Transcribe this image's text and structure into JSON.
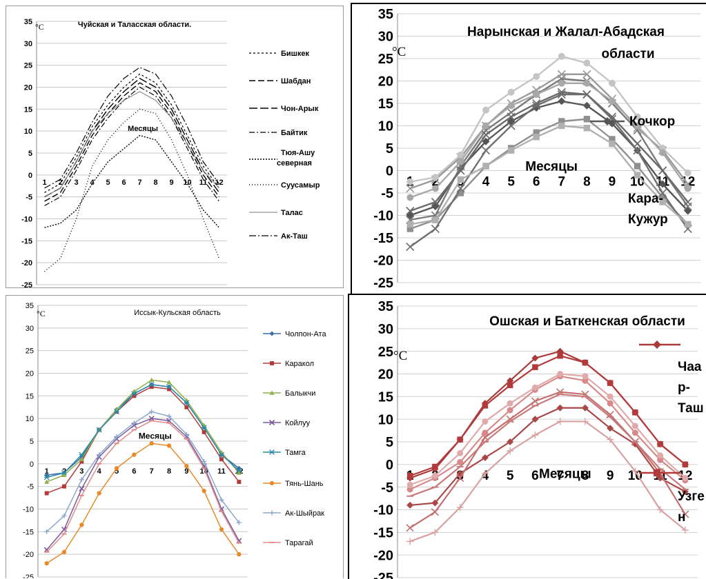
{
  "chart_data": [
    {
      "type": "line",
      "title": "Чуйская и Таласская области.",
      "unit_label": "°C",
      "xlabel": "Месяцы",
      "x": [
        1,
        2,
        3,
        4,
        5,
        6,
        7,
        8,
        9,
        10,
        11,
        12
      ],
      "ylim": [
        -25,
        35
      ],
      "yticks": [
        -25,
        -20,
        -15,
        -10,
        -5,
        0,
        5,
        10,
        15,
        20,
        25,
        30,
        35
      ],
      "grid": true,
      "legend_position": "right",
      "series": [
        {
          "name": "Бишкек",
          "values": [
            -4,
            -2,
            4,
            11,
            16,
            20,
            23,
            21,
            16,
            9,
            2,
            -3
          ]
        },
        {
          "name": "Шабдан",
          "values": [
            -6,
            -4,
            2,
            9,
            14,
            18,
            21,
            19,
            14,
            7,
            0,
            -5
          ]
        },
        {
          "name": "Чон-Арык",
          "values": [
            -5,
            -3,
            3,
            10,
            15,
            19,
            22,
            20,
            15,
            8,
            1,
            -4
          ]
        },
        {
          "name": "Байтик",
          "values": [
            -7,
            -5,
            1,
            8,
            13,
            17,
            20,
            18,
            13,
            6,
            -1,
            -6
          ]
        },
        {
          "name": "Тюя-Ашу северная",
          "values": [
            -12,
            -11,
            -8,
            -2,
            3,
            6,
            9,
            8,
            3,
            -2,
            -8,
            -12
          ]
        },
        {
          "name": "Суусамыр",
          "values": [
            -22,
            -19,
            -10,
            2,
            8,
            12,
            15,
            14,
            8,
            0,
            -10,
            -19
          ]
        },
        {
          "name": "Талас",
          "values": [
            -5,
            -3,
            3,
            10,
            14,
            17,
            19,
            17,
            13,
            7,
            1,
            -3
          ]
        },
        {
          "name": "Ак-Таш",
          "values": [
            -3,
            -1,
            5,
            12,
            18,
            22,
            24.5,
            23,
            18,
            11,
            3,
            -2
          ]
        }
      ],
      "styles": [
        {
          "color": "#000000",
          "dash": "3 3",
          "width": 1.2
        },
        {
          "color": "#000000",
          "dash": "9 4",
          "width": 1.4
        },
        {
          "color": "#000000",
          "dash": "12 4",
          "width": 1.4
        },
        {
          "color": "#000000",
          "dash": "8 3 2 3",
          "width": 1.2
        },
        {
          "color": "#000000",
          "dash": "2 2",
          "width": 1.4
        },
        {
          "color": "#000000",
          "dash": "1 3",
          "width": 1.4
        },
        {
          "color": "#777777",
          "dash": "",
          "width": 1
        },
        {
          "color": "#000000",
          "dash": "10 3 2 3",
          "width": 1.2
        }
      ]
    },
    {
      "type": "line",
      "title": "Нарынская и Жалал-Абадская области",
      "unit_label": "°C",
      "xlabel": "Месяцы",
      "x": [
        1,
        2,
        3,
        4,
        5,
        6,
        7,
        8,
        9,
        10,
        11,
        12
      ],
      "ylim": [
        -25,
        35
      ],
      "yticks": [
        -25,
        -20,
        -15,
        -10,
        -5,
        0,
        5,
        10,
        15,
        20,
        25,
        30,
        35
      ],
      "grid": true,
      "legend_position": "right",
      "series": [
        {
          "name": "Кочкор",
          "values": [
            -10,
            -8,
            0.5,
            6.5,
            11,
            14,
            15.5,
            14.5,
            10.5,
            4.5,
            -3,
            -9
          ]
        },
        {
          "name": "Кара-Кужур",
          "values": [
            -13,
            -11,
            -5,
            1,
            5,
            8.5,
            11,
            11.5,
            7,
            1,
            -6,
            -12
          ]
        },
        {
          "name": "",
          "values": [
            -17,
            -13,
            -4,
            4.5,
            10,
            14.5,
            17,
            17,
            11.5,
            4.5,
            -5,
            -13
          ]
        },
        {
          "name": "",
          "values": [
            -11,
            -10,
            1,
            9,
            13,
            17,
            20.5,
            20,
            15,
            9,
            0,
            -8
          ]
        },
        {
          "name": "",
          "values": [
            -12,
            -11,
            -2,
            1,
            4.5,
            7.5,
            10,
            9.5,
            6,
            -1,
            -7,
            -12
          ]
        },
        {
          "name": "",
          "values": [
            -4,
            -2,
            3,
            10,
            15,
            18,
            21.5,
            21.5,
            16,
            9.5,
            4.5,
            -3
          ]
        },
        {
          "name": "",
          "values": [
            -2.5,
            -1.5,
            3.5,
            13.5,
            17.5,
            21,
            25.5,
            24,
            19.5,
            12,
            5,
            -0.5
          ]
        },
        {
          "name": "",
          "values": [
            -6,
            -4,
            2,
            10,
            14.5,
            17,
            19.5,
            19.5,
            15.5,
            10,
            4,
            -4
          ]
        },
        {
          "name": "",
          "values": [
            -9,
            -7,
            0,
            8,
            12,
            15,
            17.5,
            17,
            12,
            6,
            0,
            -7
          ]
        }
      ],
      "styles": [
        {
          "color": "#555555",
          "marker": "diamond"
        },
        {
          "color": "#8f8f8f",
          "marker": "square"
        },
        {
          "color": "#6f6f6f",
          "marker": "x"
        },
        {
          "color": "#7a7a7a",
          "marker": "x"
        },
        {
          "color": "#b0b0b0",
          "marker": "square"
        },
        {
          "color": "#9a9a9a",
          "marker": "x"
        },
        {
          "color": "#c4c4c4",
          "marker": "circle"
        },
        {
          "color": "#a8a8a8",
          "marker": "circle"
        },
        {
          "color": "#6a6a6a",
          "marker": "x"
        }
      ]
    },
    {
      "type": "line",
      "title": "Иссык-Кульская область",
      "unit_label": "°C",
      "xlabel": "Месяцы",
      "x": [
        1,
        2,
        3,
        4,
        5,
        6,
        7,
        8,
        9,
        10,
        11,
        12
      ],
      "ylim": [
        -25,
        35
      ],
      "yticks": [
        -25,
        -20,
        -15,
        -10,
        -5,
        0,
        5,
        10,
        15,
        20,
        25,
        30,
        35
      ],
      "grid": true,
      "legend_position": "right",
      "series": [
        {
          "name": "Чолпон-Ата",
          "values": [
            -2.5,
            -2,
            1.5,
            7.5,
            12,
            15.5,
            17.5,
            17,
            13.5,
            8,
            2,
            -1
          ]
        },
        {
          "name": "Каракол",
          "values": [
            -6.5,
            -5,
            0.5,
            7.5,
            11.5,
            15,
            17,
            16.5,
            12.5,
            7,
            1,
            -4
          ]
        },
        {
          "name": "Балыкчи",
          "values": [
            -4,
            -2.5,
            1,
            7.5,
            12,
            16,
            18.5,
            18,
            14,
            8.5,
            2.5,
            -2
          ]
        },
        {
          "name": "Койлуу",
          "values": [
            -19,
            -14.5,
            -5.5,
            1.5,
            5.5,
            8.5,
            10,
            9.5,
            6,
            -0.5,
            -10,
            -17
          ]
        },
        {
          "name": "Тамга",
          "values": [
            -3,
            -2,
            2,
            7.5,
            11.5,
            15.5,
            17.5,
            17,
            13.5,
            8,
            2,
            -1.5
          ]
        },
        {
          "name": "Тянь-Шань",
          "values": [
            -22,
            -19.5,
            -13.5,
            -6.5,
            -1,
            2,
            4.5,
            4,
            -0.5,
            -6,
            -14.5,
            -20
          ]
        },
        {
          "name": "Ак-Шыйрак",
          "values": [
            -15,
            -11.5,
            -3.5,
            2,
            6,
            9,
            11.5,
            10.5,
            6.5,
            0.5,
            -8,
            -13
          ]
        },
        {
          "name": "Тарагай",
          "values": [
            -19.5,
            -15.5,
            -7,
            0,
            4.5,
            7.5,
            9.5,
            9,
            5.5,
            -1,
            -10.5,
            -17.5
          ]
        }
      ],
      "styles": [
        {
          "color": "#3a6ea8",
          "marker": "diamond"
        },
        {
          "color": "#b13a3a",
          "marker": "square"
        },
        {
          "color": "#8db04a",
          "marker": "triangle"
        },
        {
          "color": "#7a5a9a",
          "marker": "x"
        },
        {
          "color": "#2a8aa8",
          "marker": "star"
        },
        {
          "color": "#e88a2a",
          "marker": "circle"
        },
        {
          "color": "#8aa8cc",
          "marker": "plus"
        },
        {
          "color": "#e08a8a",
          "marker": "dash"
        }
      ]
    },
    {
      "type": "line",
      "title": "Ошская и Баткенская области",
      "unit_label": "°C",
      "xlabel": "Месяцы",
      "x": [
        1,
        2,
        3,
        4,
        5,
        6,
        7,
        8,
        9,
        10,
        11,
        12
      ],
      "ylim": [
        -25,
        35
      ],
      "yticks": [
        -25,
        -20,
        -15,
        -10,
        -5,
        0,
        5,
        10,
        15,
        20,
        25,
        30,
        35
      ],
      "grid": true,
      "legend_position": "right",
      "series": [
        {
          "name": "Чаа р- Таш",
          "values": [
            -3,
            -1,
            5.5,
            13.5,
            18.5,
            23.5,
            25,
            22.5,
            18,
            11.5,
            4.5,
            0
          ]
        },
        {
          "name": "Узге н",
          "values": [
            -2.5,
            -0.5,
            5.5,
            13,
            17.5,
            21.5,
            24,
            22.5,
            18,
            11.5,
            4.5,
            0
          ]
        },
        {
          "name": "",
          "values": [
            -9,
            -8.5,
            -2,
            1.5,
            5,
            10,
            12.5,
            12.5,
            8,
            4.5,
            -3,
            -6
          ]
        },
        {
          "name": "",
          "values": [
            -14,
            -10.5,
            -3,
            6,
            10,
            14,
            16,
            15.5,
            11,
            5,
            -2,
            -11
          ]
        },
        {
          "name": "",
          "values": [
            -17,
            -15,
            -9.5,
            -2,
            3,
            6.5,
            9.5,
            9.5,
            5.5,
            -1.5,
            -10,
            -14.5
          ]
        },
        {
          "name": "",
          "values": [
            -5.5,
            -3,
            0.5,
            7,
            12,
            16.5,
            19.5,
            18.5,
            13.5,
            7,
            1,
            -3.5
          ]
        },
        {
          "name": "",
          "values": [
            -7,
            -5,
            -0.5,
            5,
            9.5,
            13,
            15.5,
            15,
            10.5,
            5,
            -1,
            -5.5
          ]
        },
        {
          "name": "",
          "values": [
            -4.5,
            -2.5,
            2.5,
            9.5,
            13.5,
            17,
            20,
            19.5,
            15,
            8.5,
            2,
            -3
          ]
        }
      ],
      "styles": [
        {
          "color": "#a83a3a",
          "marker": "diamond"
        },
        {
          "color": "#b23a3a",
          "marker": "square"
        },
        {
          "color": "#a84848",
          "marker": "diamond"
        },
        {
          "color": "#c46e6e",
          "marker": "x"
        },
        {
          "color": "#d8a0a0",
          "marker": "plus"
        },
        {
          "color": "#d88a8a",
          "marker": "circle"
        },
        {
          "color": "#c87a7a",
          "marker": "dash"
        },
        {
          "color": "#e0aaaa",
          "marker": "circle"
        }
      ]
    }
  ]
}
